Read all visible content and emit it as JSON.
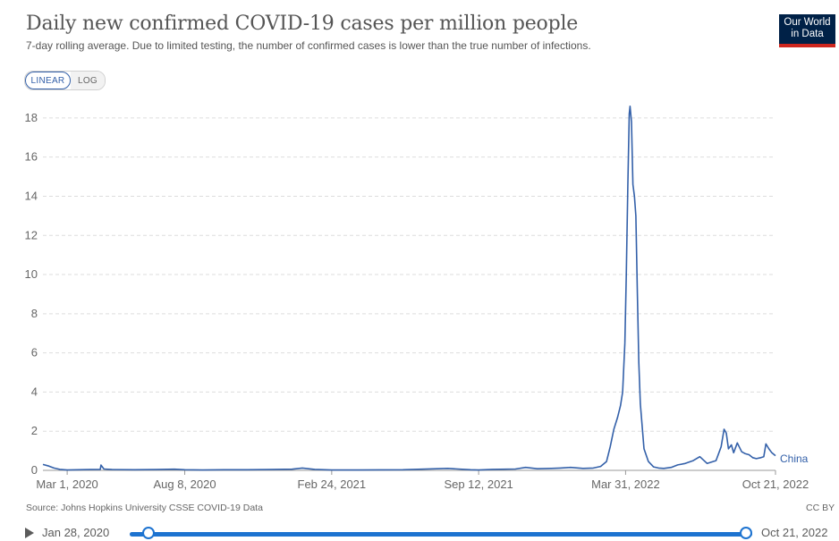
{
  "header": {
    "title": "Daily new confirmed COVID-19 cases per million people",
    "subtitle": "7-day rolling average. Due to limited testing, the number of confirmed cases is lower than the true number of infections.",
    "logo_line1": "Our World",
    "logo_line2": "in Data"
  },
  "scale_toggle": {
    "linear_label": "LINEAR",
    "log_label": "LOG",
    "selected": "LINEAR"
  },
  "footer": {
    "source": "Source: Johns Hopkins University CSSE COVID-19 Data",
    "license": "CC BY"
  },
  "timeline": {
    "start_label": "Jan 28, 2020",
    "end_label": "Oct 21, 2022",
    "range_start_fraction": 0,
    "range_end_fraction": 1
  },
  "colors": {
    "series": "#3360a9",
    "gridline": "#dddddd",
    "slider": "#1d73d0",
    "logo_bg": "#002147",
    "logo_accent": "#ce261e"
  },
  "chart_data": {
    "type": "line",
    "title": "Daily new confirmed COVID-19 cases per million people",
    "xlabel": "",
    "ylabel": "",
    "ylim": [
      0,
      19
    ],
    "yticks": [
      0,
      2,
      4,
      6,
      8,
      10,
      12,
      14,
      16,
      18
    ],
    "xticks": [
      "Mar 1, 2020",
      "Aug 8, 2020",
      "Feb 24, 2021",
      "Sep 12, 2021",
      "Mar 31, 2022",
      "Oct 21, 2022"
    ],
    "xtick_dates": [
      "2020-03-01",
      "2020-08-08",
      "2021-02-24",
      "2021-09-12",
      "2022-03-31",
      "2022-10-21"
    ],
    "grid": true,
    "series": [
      {
        "name": "China",
        "x": [
          "2020-01-28",
          "2020-02-05",
          "2020-02-12",
          "2020-02-20",
          "2020-03-01",
          "2020-04-01",
          "2020-04-15",
          "2020-04-16",
          "2020-04-20",
          "2020-05-01",
          "2020-06-01",
          "2020-07-01",
          "2020-07-25",
          "2020-08-08",
          "2020-09-01",
          "2020-10-01",
          "2020-11-01",
          "2020-12-01",
          "2021-01-01",
          "2021-01-15",
          "2021-02-01",
          "2021-02-24",
          "2021-04-01",
          "2021-06-01",
          "2021-08-01",
          "2021-08-15",
          "2021-09-01",
          "2021-09-12",
          "2021-10-01",
          "2021-11-01",
          "2021-11-15",
          "2021-12-01",
          "2021-12-20",
          "2022-01-01",
          "2022-01-15",
          "2022-02-01",
          "2022-02-15",
          "2022-02-25",
          "2022-03-05",
          "2022-03-10",
          "2022-03-15",
          "2022-03-20",
          "2022-03-24",
          "2022-03-27",
          "2022-03-30",
          "2022-04-01",
          "2022-04-03",
          "2022-04-05",
          "2022-04-06",
          "2022-04-08",
          "2022-04-10",
          "2022-04-12",
          "2022-04-14",
          "2022-04-16",
          "2022-04-18",
          "2022-04-20",
          "2022-04-25",
          "2022-05-01",
          "2022-05-08",
          "2022-05-15",
          "2022-05-22",
          "2022-06-01",
          "2022-06-10",
          "2022-06-20",
          "2022-07-01",
          "2022-07-10",
          "2022-07-20",
          "2022-08-01",
          "2022-08-08",
          "2022-08-12",
          "2022-08-15",
          "2022-08-18",
          "2022-08-22",
          "2022-08-25",
          "2022-08-30",
          "2022-09-05",
          "2022-09-10",
          "2022-09-15",
          "2022-09-20",
          "2022-09-25",
          "2022-10-01",
          "2022-10-05",
          "2022-10-08",
          "2022-10-12",
          "2022-10-16",
          "2022-10-21"
        ],
        "y": [
          0.3,
          0.22,
          0.12,
          0.05,
          0.02,
          0.04,
          0.05,
          0.27,
          0.07,
          0.04,
          0.03,
          0.04,
          0.06,
          0.03,
          0.02,
          0.03,
          0.03,
          0.04,
          0.06,
          0.12,
          0.05,
          0.02,
          0.02,
          0.03,
          0.1,
          0.07,
          0.03,
          0.02,
          0.05,
          0.07,
          0.15,
          0.08,
          0.1,
          0.12,
          0.15,
          0.1,
          0.12,
          0.2,
          0.45,
          1.2,
          2.1,
          2.7,
          3.3,
          4.0,
          6.5,
          10.0,
          14.5,
          18.2,
          18.6,
          17.8,
          14.6,
          14.0,
          13.0,
          9.0,
          5.5,
          3.4,
          1.1,
          0.45,
          0.18,
          0.12,
          0.1,
          0.15,
          0.28,
          0.35,
          0.5,
          0.7,
          0.35,
          0.5,
          1.2,
          2.1,
          1.9,
          1.1,
          1.3,
          0.9,
          1.4,
          0.95,
          0.85,
          0.8,
          0.65,
          0.6,
          0.65,
          0.7,
          1.35,
          1.1,
          0.9,
          0.75
        ]
      }
    ]
  }
}
